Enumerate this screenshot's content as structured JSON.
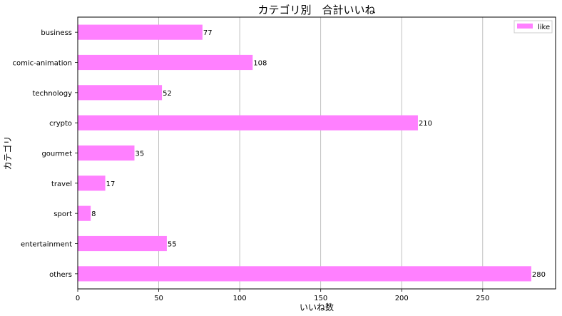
{
  "chart_data": {
    "type": "bar",
    "orientation": "horizontal",
    "title": "カテゴリ別　合計いいね",
    "xlabel": "いいね数",
    "ylabel": "カテゴリ",
    "categories": [
      "business",
      "comic-animation",
      "technology",
      "crypto",
      "gourmet",
      "travel",
      "sport",
      "entertainment",
      "others"
    ],
    "series": [
      {
        "name": "like",
        "values": [
          77,
          108,
          52,
          210,
          35,
          17,
          8,
          55,
          280
        ],
        "color": "#ff80ff"
      }
    ],
    "xlim": [
      0,
      295
    ],
    "xticks": [
      0,
      50,
      100,
      150,
      200,
      250
    ],
    "grid": "vertical",
    "legend_position": "top-right",
    "show_data_labels": true
  }
}
